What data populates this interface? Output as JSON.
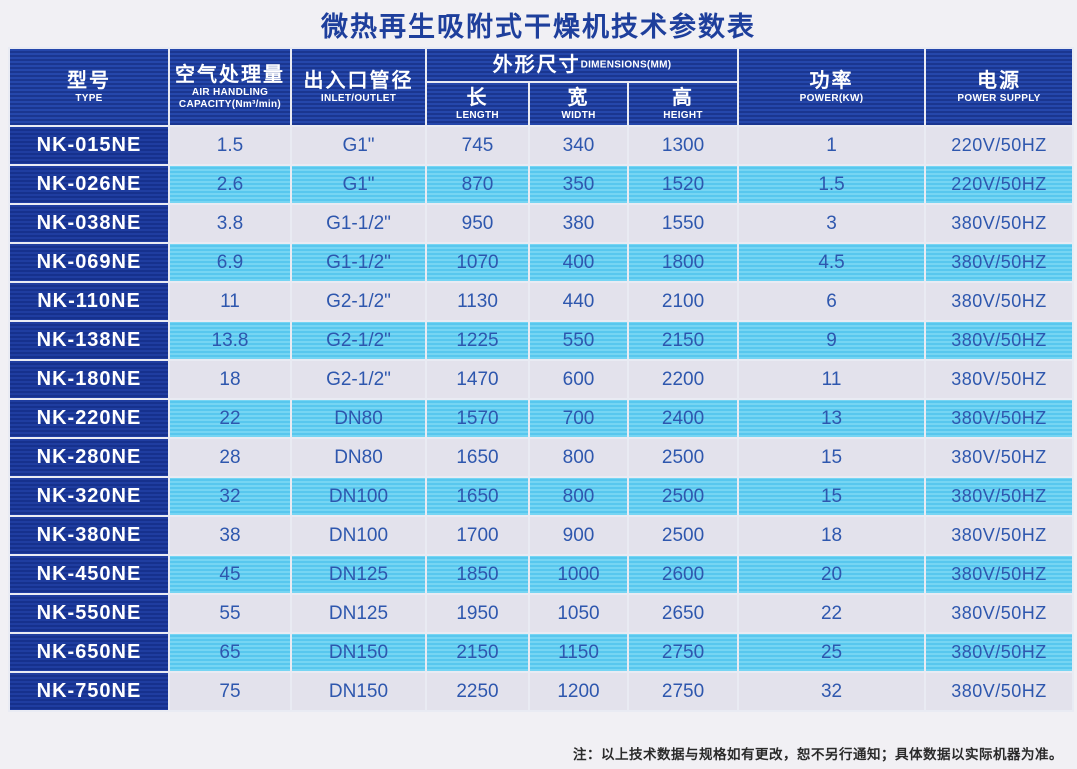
{
  "title": "微热再生吸附式干燥机技术参数表",
  "header": {
    "model": {
      "zh": "型号",
      "en": "TYPE"
    },
    "capacity": {
      "zh": "空气处理量",
      "en_lines": [
        "AIR HANDLING",
        "CAPACITY(Nm³/min)"
      ]
    },
    "inlet": {
      "zh": "出入口管径",
      "en": "INLET/OUTLET"
    },
    "dimensions": {
      "zh": "外形尺寸",
      "en": "DIMENSIONS(MM)",
      "sub": [
        {
          "zh": "长",
          "en": "LENGTH"
        },
        {
          "zh": "宽",
          "en": "WIDTH"
        },
        {
          "zh": "高",
          "en": "HEIGHT"
        }
      ]
    },
    "power": {
      "zh": "功率",
      "en": "POWER(KW)"
    },
    "supply": {
      "zh": "电源",
      "en": "POWER SUPPLY"
    }
  },
  "rows": [
    {
      "model": "NK-015NE",
      "capacity": "1.5",
      "pipe": "G1\"",
      "length": "745",
      "width": "340",
      "height": "1300",
      "power": "1",
      "supply": "220V/50HZ"
    },
    {
      "model": "NK-026NE",
      "capacity": "2.6",
      "pipe": "G1\"",
      "length": "870",
      "width": "350",
      "height": "1520",
      "power": "1.5",
      "supply": "220V/50HZ"
    },
    {
      "model": "NK-038NE",
      "capacity": "3.8",
      "pipe": "G1-1/2\"",
      "length": "950",
      "width": "380",
      "height": "1550",
      "power": "3",
      "supply": "380V/50HZ"
    },
    {
      "model": "NK-069NE",
      "capacity": "6.9",
      "pipe": "G1-1/2\"",
      "length": "1070",
      "width": "400",
      "height": "1800",
      "power": "4.5",
      "supply": "380V/50HZ"
    },
    {
      "model": "NK-110NE",
      "capacity": "11",
      "pipe": "G2-1/2\"",
      "length": "1130",
      "width": "440",
      "height": "2100",
      "power": "6",
      "supply": "380V/50HZ"
    },
    {
      "model": "NK-138NE",
      "capacity": "13.8",
      "pipe": "G2-1/2\"",
      "length": "1225",
      "width": "550",
      "height": "2150",
      "power": "9",
      "supply": "380V/50HZ"
    },
    {
      "model": "NK-180NE",
      "capacity": "18",
      "pipe": "G2-1/2\"",
      "length": "1470",
      "width": "600",
      "height": "2200",
      "power": "11",
      "supply": "380V/50HZ"
    },
    {
      "model": "NK-220NE",
      "capacity": "22",
      "pipe": "DN80",
      "length": "1570",
      "width": "700",
      "height": "2400",
      "power": "13",
      "supply": "380V/50HZ"
    },
    {
      "model": "NK-280NE",
      "capacity": "28",
      "pipe": "DN80",
      "length": "1650",
      "width": "800",
      "height": "2500",
      "power": "15",
      "supply": "380V/50HZ"
    },
    {
      "model": "NK-320NE",
      "capacity": "32",
      "pipe": "DN100",
      "length": "1650",
      "width": "800",
      "height": "2500",
      "power": "15",
      "supply": "380V/50HZ"
    },
    {
      "model": "NK-380NE",
      "capacity": "38",
      "pipe": "DN100",
      "length": "1700",
      "width": "900",
      "height": "2500",
      "power": "18",
      "supply": "380V/50HZ"
    },
    {
      "model": "NK-450NE",
      "capacity": "45",
      "pipe": "DN125",
      "length": "1850",
      "width": "1000",
      "height": "2600",
      "power": "20",
      "supply": "380V/50HZ"
    },
    {
      "model": "NK-550NE",
      "capacity": "55",
      "pipe": "DN125",
      "length": "1950",
      "width": "1050",
      "height": "2650",
      "power": "22",
      "supply": "380V/50HZ"
    },
    {
      "model": "NK-650NE",
      "capacity": "65",
      "pipe": "DN150",
      "length": "2150",
      "width": "1150",
      "height": "2750",
      "power": "25",
      "supply": "380V/50HZ"
    },
    {
      "model": "NK-750NE",
      "capacity": "75",
      "pipe": "DN150",
      "length": "2250",
      "width": "1200",
      "height": "2750",
      "power": "32",
      "supply": "380V/50HZ"
    }
  ],
  "note": "注：以上技术数据与规格如有更改，恕不另行通知；具体数据以实际机器为准。",
  "colors": {
    "header_blue": "#1e3f9e",
    "model_cell_blue": "#1a3694",
    "stripe_blue": "#5fcbf0",
    "stripe_gray": "#e3e2ec",
    "data_text_blue": "#2e57ae",
    "title_blue": "#1e3f9c",
    "paper_background": "#f1f0f4"
  }
}
